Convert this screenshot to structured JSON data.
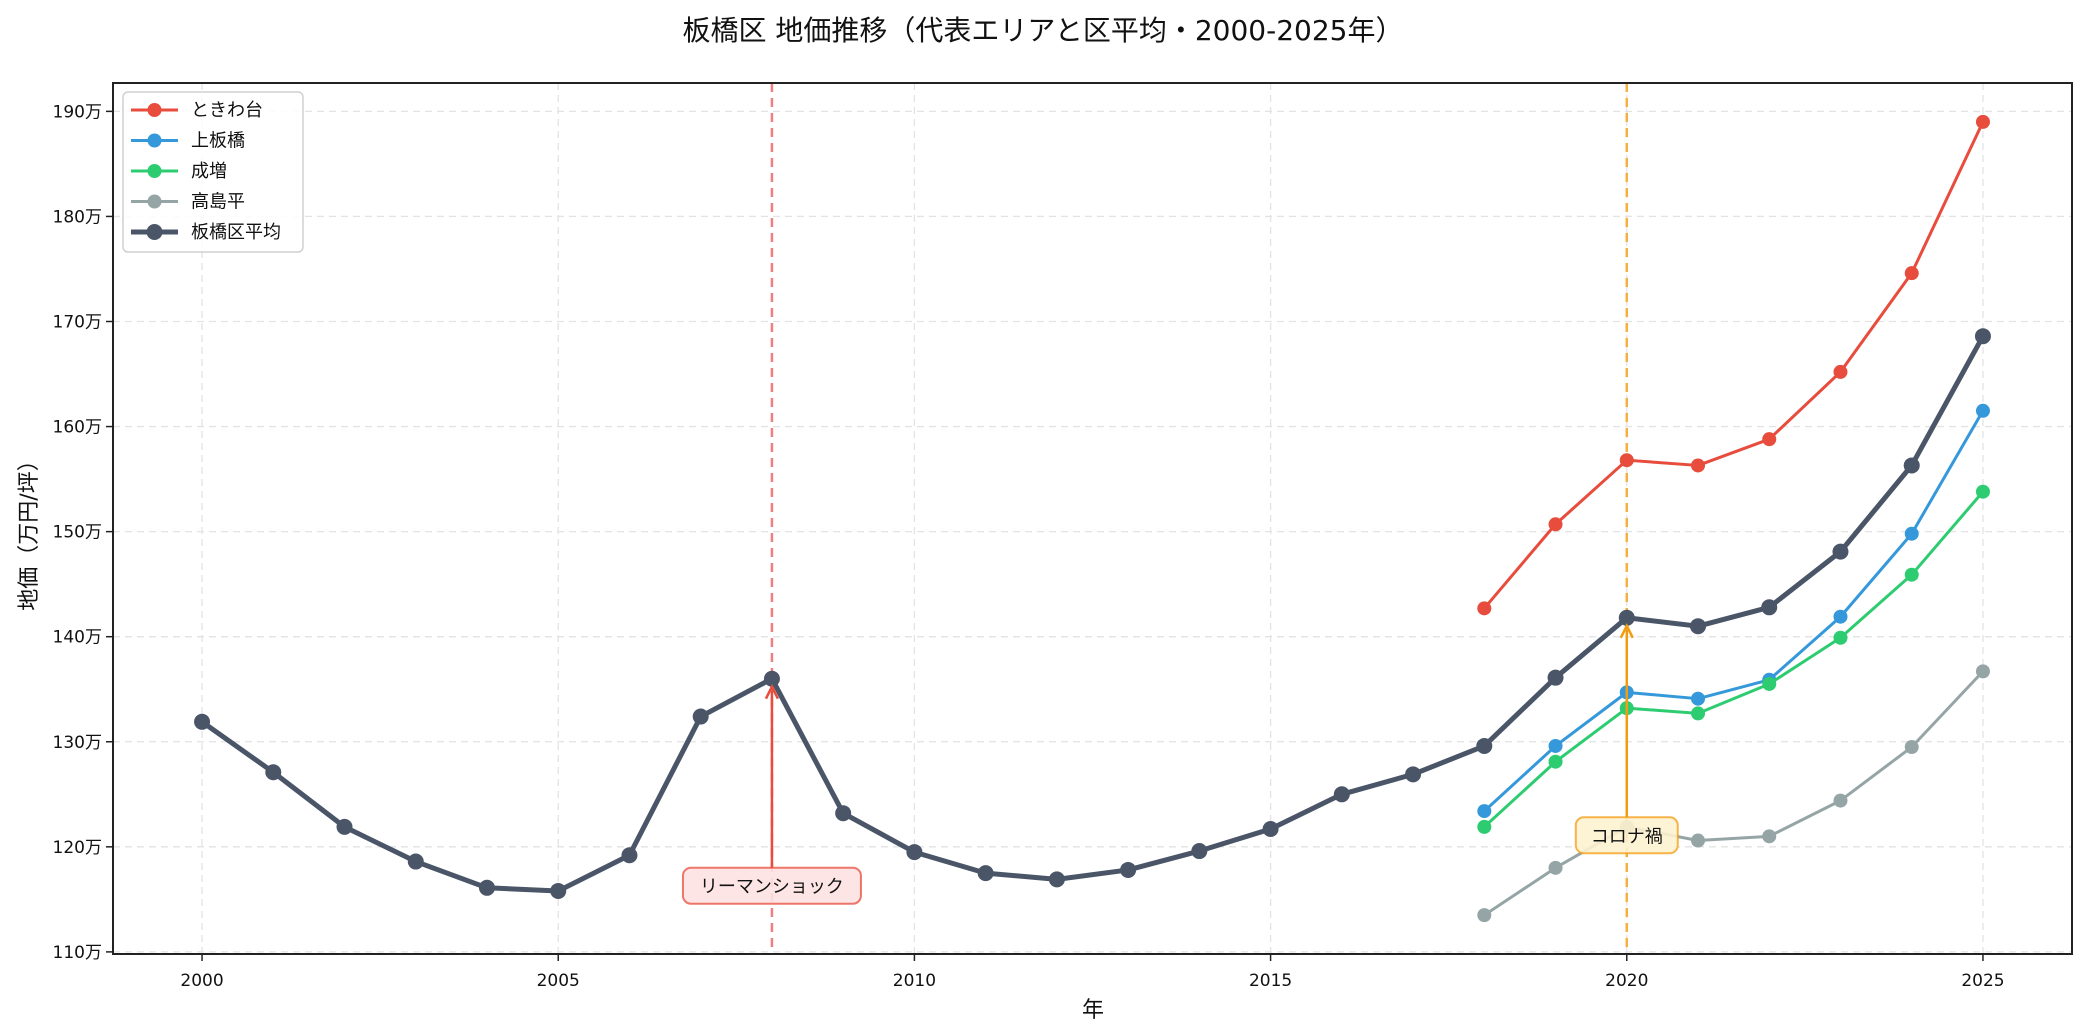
{
  "chart_data": {
    "type": "line",
    "title": "板橋区 地価推移（代表エリアと区平均・2000-2025年）",
    "xlabel": "年",
    "ylabel": "地価（万円/坪）",
    "xlim": [
      1998.75,
      2026.25
    ],
    "ylim": [
      109.8,
      192.7
    ],
    "xticks": [
      2000,
      2005,
      2010,
      2015,
      2020,
      2025
    ],
    "yticks": [
      110,
      120,
      130,
      140,
      150,
      160,
      170,
      180,
      190
    ],
    "ytick_suffix": "万",
    "grid": true,
    "legend_position": "upper left",
    "series": [
      {
        "name": "ときわ台",
        "color": "#e74c3c",
        "linewidth": 3,
        "x": [
          2018,
          2019,
          2020,
          2021,
          2022,
          2023,
          2024,
          2025
        ],
        "values": [
          142.7,
          150.7,
          156.8,
          156.3,
          158.8,
          165.2,
          174.6,
          189.0
        ]
      },
      {
        "name": "上板橋",
        "color": "#3498db",
        "linewidth": 3,
        "x": [
          2018,
          2019,
          2020,
          2021,
          2022,
          2023,
          2024,
          2025
        ],
        "values": [
          123.4,
          129.6,
          134.7,
          134.1,
          135.9,
          141.9,
          149.8,
          161.5
        ]
      },
      {
        "name": "成増",
        "color": "#2ecc71",
        "linewidth": 3,
        "x": [
          2018,
          2019,
          2020,
          2021,
          2022,
          2023,
          2024,
          2025
        ],
        "values": [
          121.9,
          128.1,
          133.2,
          132.7,
          135.5,
          139.9,
          145.9,
          153.8
        ]
      },
      {
        "name": "高島平",
        "color": "#95a5a6",
        "linewidth": 3,
        "x": [
          2018,
          2019,
          2020,
          2021,
          2022,
          2023,
          2024,
          2025
        ],
        "values": [
          113.5,
          118.0,
          121.9,
          120.6,
          121.0,
          124.4,
          129.5,
          136.7
        ]
      },
      {
        "name": "板橋区平均",
        "color": "#4a5568",
        "linewidth": 5,
        "x": [
          2000,
          2001,
          2002,
          2003,
          2004,
          2005,
          2006,
          2007,
          2008,
          2009,
          2010,
          2011,
          2012,
          2013,
          2014,
          2015,
          2016,
          2017,
          2018,
          2019,
          2020,
          2021,
          2022,
          2023,
          2024,
          2025
        ],
        "values": [
          131.9,
          127.1,
          121.9,
          118.6,
          116.1,
          115.8,
          119.2,
          132.4,
          136.0,
          123.2,
          119.5,
          117.5,
          116.9,
          117.8,
          119.6,
          121.7,
          125.0,
          126.9,
          129.6,
          136.1,
          141.8,
          141.0,
          142.8,
          148.1,
          156.3,
          168.6
        ]
      }
    ],
    "vlines": [
      {
        "x": 2008,
        "color": "#f08080",
        "style": "dashed"
      },
      {
        "x": 2020,
        "color": "#f5b041",
        "style": "dashed"
      }
    ],
    "annotations": [
      {
        "text": "リーマンショック",
        "xy": [
          2008,
          136.0
        ],
        "xytext": [
          2008,
          116.3
        ],
        "box_fill": "#fde2e2",
        "box_edge": "#e74c3c",
        "arrow_color": "#e74c3c"
      },
      {
        "text": "コロナ禍",
        "xy": [
          2020,
          141.8
        ],
        "xytext": [
          2020,
          121.1
        ],
        "box_fill": "#fdf2d0",
        "box_edge": "#f39c12",
        "arrow_color": "#f39c12"
      }
    ]
  }
}
